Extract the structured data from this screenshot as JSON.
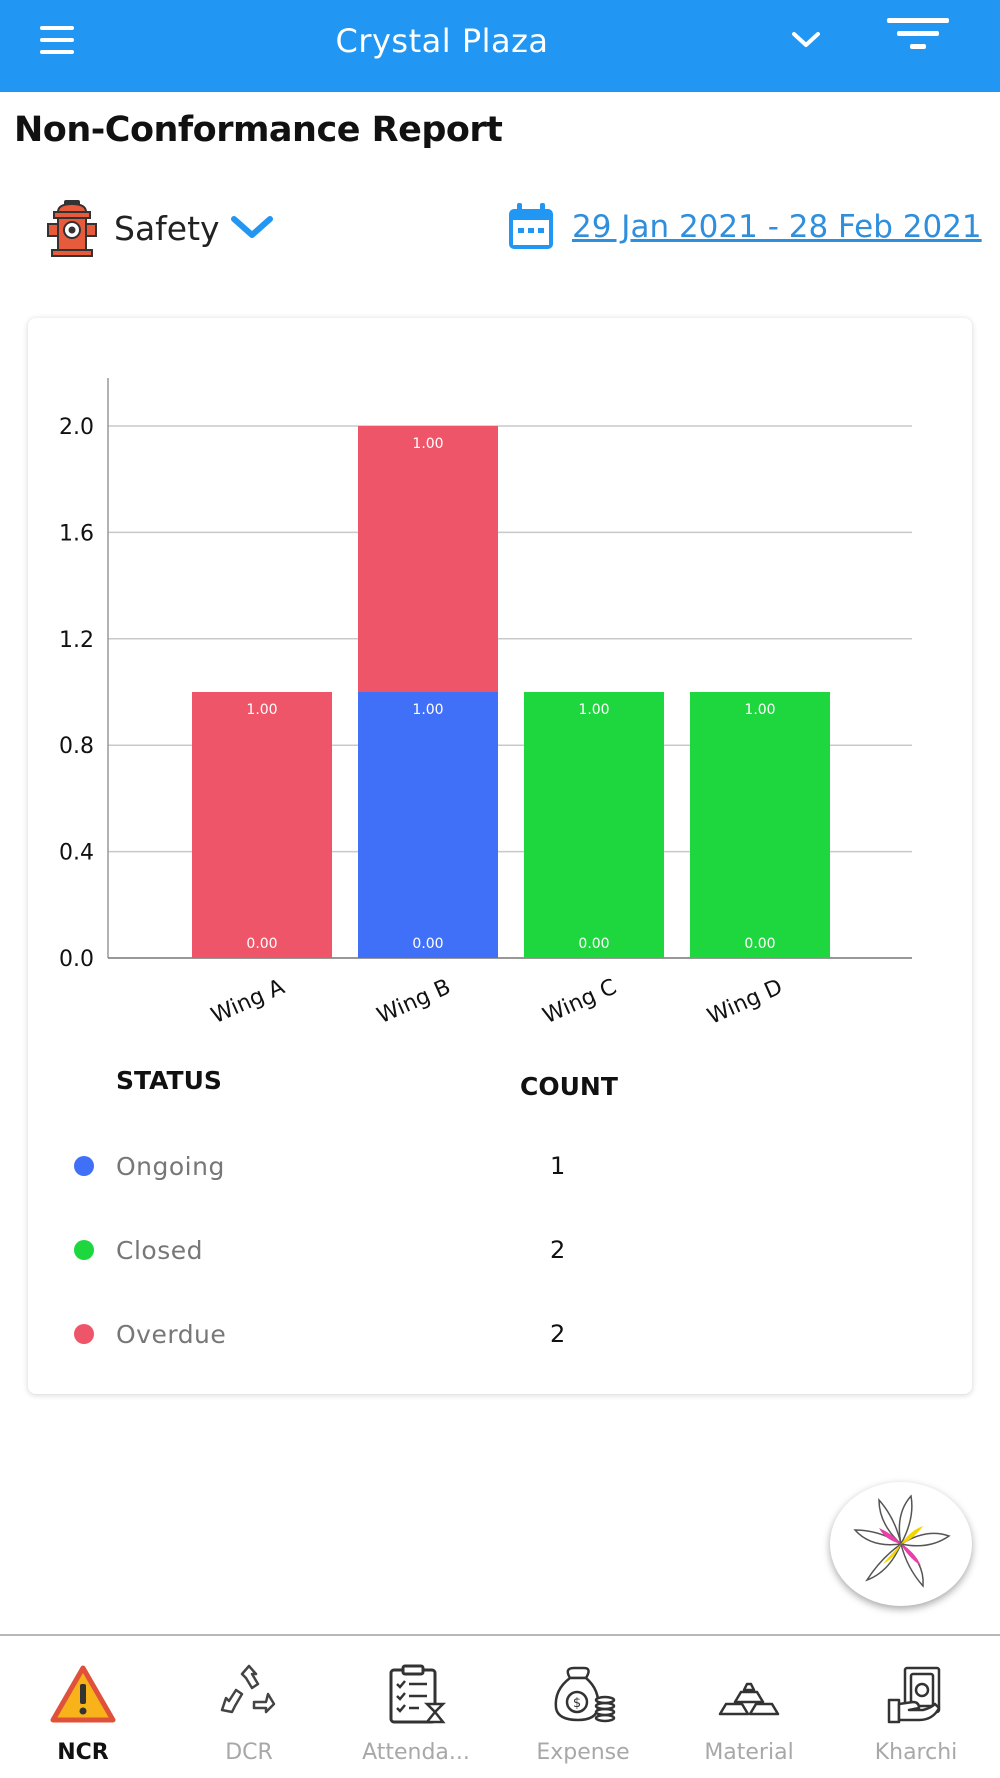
{
  "header": {
    "title": "Crystal Plaza",
    "menu_icon": "hamburger-menu-icon",
    "dropdown_icon": "chevron-down-icon",
    "filter_icon": "filter-icon",
    "background_color": "#2196F3"
  },
  "page": {
    "title": "Non-Conformance Report"
  },
  "category": {
    "icon": "fire-hydrant-icon",
    "label": "Safety"
  },
  "date_range": {
    "icon": "calendar-icon",
    "label": "29 Jan 2021 - 28 Feb 2021"
  },
  "chart_data": {
    "type": "bar",
    "stacked": true,
    "categories": [
      "Wing A",
      "Wing B",
      "Wing C",
      "Wing D"
    ],
    "series": [
      {
        "name": "Ongoing",
        "color": "#4170F8",
        "values": [
          0,
          1,
          0,
          0
        ]
      },
      {
        "name": "Closed",
        "color": "#1ED73F",
        "values": [
          0,
          0,
          1,
          1
        ]
      },
      {
        "name": "Overdue",
        "color": "#EF5569",
        "values": [
          1,
          1,
          0,
          0
        ]
      }
    ],
    "bar_labels": [
      {
        "category": "Wing A",
        "labels": [
          "1.00",
          "0.00"
        ]
      },
      {
        "category": "Wing B",
        "labels": [
          "1.00",
          "1.00",
          "0.00"
        ]
      },
      {
        "category": "Wing C",
        "labels": [
          "1.00",
          "0.00"
        ]
      },
      {
        "category": "Wing D",
        "labels": [
          "1.00",
          "0.00"
        ]
      }
    ],
    "y_ticks": [
      "0.0",
      "0.4",
      "0.8",
      "1.2",
      "1.6",
      "2.0"
    ],
    "ylim": [
      0,
      2.2
    ],
    "grid": true,
    "xlabel": "",
    "ylabel": ""
  },
  "legend": {
    "status_header": "STATUS",
    "count_header": "COUNT",
    "rows": [
      {
        "label": "Ongoing",
        "count": "1",
        "color": "#4170F8"
      },
      {
        "label": "Closed",
        "count": "2",
        "color": "#1ED73F"
      },
      {
        "label": "Overdue",
        "count": "2",
        "color": "#EF5569"
      }
    ]
  },
  "fab": {
    "icon": "pinwheel-logo-icon"
  },
  "bottom_nav": {
    "items": [
      {
        "label": "NCR",
        "icon": "warning-icon",
        "active": true
      },
      {
        "label": "DCR",
        "icon": "recycle-icon",
        "active": false
      },
      {
        "label": "Attenda...",
        "icon": "attendance-clipboard-icon",
        "active": false
      },
      {
        "label": "Expense",
        "icon": "money-bag-icon",
        "active": false
      },
      {
        "label": "Material",
        "icon": "gold-bars-icon",
        "active": false
      },
      {
        "label": "Kharchi",
        "icon": "cash-hand-icon",
        "active": false
      }
    ]
  }
}
